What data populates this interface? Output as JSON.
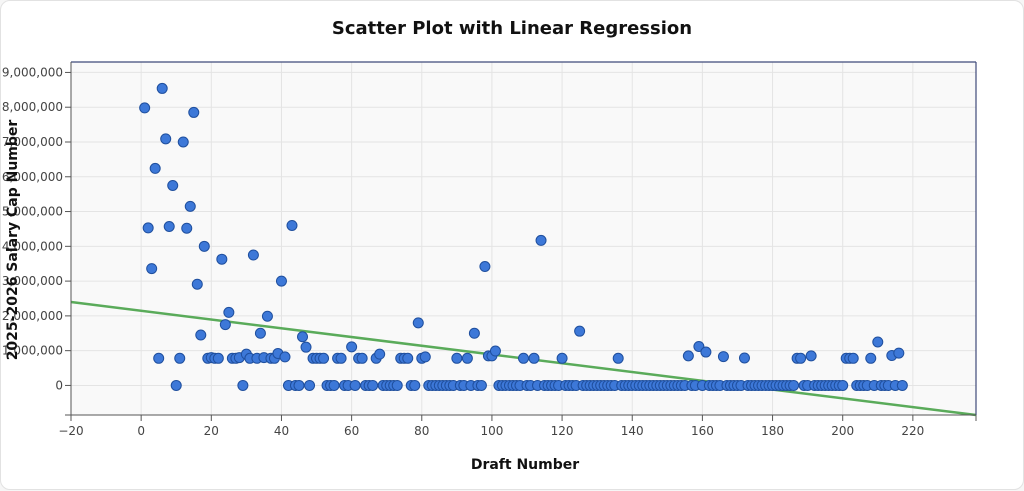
{
  "chart_data": {
    "type": "scatter",
    "title": "Scatter Plot with Linear Regression",
    "xlabel": "Draft Number",
    "ylabel": "2025-2026 Salary Cap Number",
    "xlim": [
      -20,
      238
    ],
    "ylim": [
      -850000,
      9300000
    ],
    "x_ticks": [
      -20,
      0,
      20,
      40,
      60,
      80,
      100,
      120,
      140,
      160,
      180,
      200,
      220
    ],
    "y_ticks": [
      0,
      1000000,
      2000000,
      3000000,
      4000000,
      5000000,
      6000000,
      7000000,
      8000000,
      9000000
    ],
    "x_tick_labels": [
      "−20",
      "0",
      "20",
      "40",
      "60",
      "80",
      "100",
      "120",
      "140",
      "160",
      "180",
      "200",
      "220"
    ],
    "y_tick_labels": [
      "0",
      "1,000,000",
      "2,000,000",
      "3,000,000",
      "4,000,000",
      "5,000,000",
      "6,000,000",
      "7,000,000",
      "8,000,000",
      "9,000,000"
    ],
    "grid": true,
    "point_color": "#3d78d8",
    "point_edge_color": "#1f4f9e",
    "line_color": "#5aab5a",
    "regression_line": {
      "x": [
        -20,
        238
      ],
      "y": [
        2400000,
        -850000
      ]
    },
    "points": [
      [
        1,
        7980000
      ],
      [
        2,
        4530000
      ],
      [
        3,
        3360000
      ],
      [
        4,
        6240000
      ],
      [
        5,
        780000
      ],
      [
        6,
        8540000
      ],
      [
        7,
        7090000
      ],
      [
        8,
        4570000
      ],
      [
        9,
        5750000
      ],
      [
        10,
        0
      ],
      [
        11,
        780000
      ],
      [
        12,
        7000000
      ],
      [
        13,
        4520000
      ],
      [
        14,
        5150000
      ],
      [
        15,
        7850000
      ],
      [
        16,
        2910000
      ],
      [
        17,
        1450000
      ],
      [
        18,
        4000000
      ],
      [
        19,
        780000
      ],
      [
        20,
        800000
      ],
      [
        21,
        780000
      ],
      [
        22,
        780000
      ],
      [
        23,
        3630000
      ],
      [
        24,
        1750000
      ],
      [
        25,
        2100000
      ],
      [
        26,
        780000
      ],
      [
        27,
        780000
      ],
      [
        28,
        800000
      ],
      [
        29,
        0
      ],
      [
        30,
        900000
      ],
      [
        31,
        780000
      ],
      [
        32,
        3750000
      ],
      [
        33,
        780000
      ],
      [
        34,
        1500000
      ],
      [
        35,
        800000
      ],
      [
        36,
        1990000
      ],
      [
        37,
        780000
      ],
      [
        38,
        780000
      ],
      [
        39,
        920000
      ],
      [
        40,
        3000000
      ],
      [
        41,
        820000
      ],
      [
        42,
        0
      ],
      [
        43,
        4600000
      ],
      [
        44,
        0
      ],
      [
        45,
        0
      ],
      [
        46,
        1400000
      ],
      [
        47,
        1100000
      ],
      [
        48,
        0
      ],
      [
        49,
        780000
      ],
      [
        50,
        780000
      ],
      [
        51,
        780000
      ],
      [
        52,
        780000
      ],
      [
        53,
        0
      ],
      [
        54,
        0
      ],
      [
        55,
        0
      ],
      [
        56,
        780000
      ],
      [
        57,
        780000
      ],
      [
        58,
        0
      ],
      [
        59,
        0
      ],
      [
        60,
        1110000
      ],
      [
        61,
        0
      ],
      [
        62,
        780000
      ],
      [
        63,
        780000
      ],
      [
        64,
        0
      ],
      [
        65,
        0
      ],
      [
        66,
        0
      ],
      [
        67,
        780000
      ],
      [
        68,
        900000
      ],
      [
        69,
        0
      ],
      [
        70,
        0
      ],
      [
        71,
        0
      ],
      [
        72,
        0
      ],
      [
        73,
        0
      ],
      [
        74,
        780000
      ],
      [
        75,
        780000
      ],
      [
        76,
        780000
      ],
      [
        77,
        0
      ],
      [
        78,
        0
      ],
      [
        79,
        1800000
      ],
      [
        80,
        780000
      ],
      [
        81,
        820000
      ],
      [
        82,
        0
      ],
      [
        83,
        0
      ],
      [
        84,
        0
      ],
      [
        85,
        0
      ],
      [
        86,
        0
      ],
      [
        87,
        0
      ],
      [
        88,
        0
      ],
      [
        89,
        0
      ],
      [
        90,
        780000
      ],
      [
        91,
        0
      ],
      [
        92,
        0
      ],
      [
        93,
        780000
      ],
      [
        94,
        0
      ],
      [
        95,
        1500000
      ],
      [
        96,
        0
      ],
      [
        97,
        0
      ],
      [
        98,
        3420000
      ],
      [
        99,
        850000
      ],
      [
        100,
        850000
      ],
      [
        101,
        990000
      ],
      [
        102,
        0
      ],
      [
        103,
        0
      ],
      [
        104,
        0
      ],
      [
        105,
        0
      ],
      [
        106,
        0
      ],
      [
        107,
        0
      ],
      [
        108,
        0
      ],
      [
        109,
        780000
      ],
      [
        110,
        0
      ],
      [
        111,
        0
      ],
      [
        112,
        780000
      ],
      [
        113,
        0
      ],
      [
        114,
        4170000
      ],
      [
        115,
        0
      ],
      [
        116,
        0
      ],
      [
        117,
        0
      ],
      [
        118,
        0
      ],
      [
        119,
        0
      ],
      [
        120,
        780000
      ],
      [
        121,
        0
      ],
      [
        122,
        0
      ],
      [
        123,
        0
      ],
      [
        124,
        0
      ],
      [
        125,
        1560000
      ],
      [
        126,
        0
      ],
      [
        127,
        0
      ],
      [
        128,
        0
      ],
      [
        129,
        0
      ],
      [
        130,
        0
      ],
      [
        131,
        0
      ],
      [
        132,
        0
      ],
      [
        133,
        0
      ],
      [
        134,
        0
      ],
      [
        135,
        0
      ],
      [
        136,
        780000
      ],
      [
        137,
        0
      ],
      [
        138,
        0
      ],
      [
        139,
        0
      ],
      [
        140,
        0
      ],
      [
        141,
        0
      ],
      [
        142,
        0
      ],
      [
        143,
        0
      ],
      [
        144,
        0
      ],
      [
        145,
        0
      ],
      [
        146,
        0
      ],
      [
        147,
        0
      ],
      [
        148,
        0
      ],
      [
        149,
        0
      ],
      [
        150,
        0
      ],
      [
        151,
        0
      ],
      [
        152,
        0
      ],
      [
        153,
        0
      ],
      [
        154,
        0
      ],
      [
        155,
        0
      ],
      [
        156,
        850000
      ],
      [
        157,
        0
      ],
      [
        158,
        0
      ],
      [
        159,
        1120000
      ],
      [
        160,
        0
      ],
      [
        161,
        960000
      ],
      [
        162,
        0
      ],
      [
        163,
        0
      ],
      [
        164,
        0
      ],
      [
        165,
        0
      ],
      [
        166,
        830000
      ],
      [
        167,
        0
      ],
      [
        168,
        0
      ],
      [
        169,
        0
      ],
      [
        170,
        0
      ],
      [
        171,
        0
      ],
      [
        172,
        790000
      ],
      [
        173,
        0
      ],
      [
        174,
        0
      ],
      [
        175,
        0
      ],
      [
        176,
        0
      ],
      [
        177,
        0
      ],
      [
        178,
        0
      ],
      [
        179,
        0
      ],
      [
        180,
        0
      ],
      [
        181,
        0
      ],
      [
        182,
        0
      ],
      [
        183,
        0
      ],
      [
        184,
        0
      ],
      [
        185,
        0
      ],
      [
        186,
        0
      ],
      [
        187,
        780000
      ],
      [
        188,
        780000
      ],
      [
        189,
        0
      ],
      [
        190,
        0
      ],
      [
        191,
        850000
      ],
      [
        192,
        0
      ],
      [
        193,
        0
      ],
      [
        194,
        0
      ],
      [
        195,
        0
      ],
      [
        196,
        0
      ],
      [
        197,
        0
      ],
      [
        198,
        0
      ],
      [
        199,
        0
      ],
      [
        200,
        0
      ],
      [
        201,
        780000
      ],
      [
        202,
        780000
      ],
      [
        203,
        780000
      ],
      [
        204,
        0
      ],
      [
        205,
        0
      ],
      [
        206,
        0
      ],
      [
        207,
        0
      ],
      [
        208,
        780000
      ],
      [
        209,
        0
      ],
      [
        210,
        1250000
      ],
      [
        211,
        0
      ],
      [
        212,
        0
      ],
      [
        213,
        0
      ],
      [
        214,
        860000
      ],
      [
        215,
        0
      ],
      [
        216,
        930000
      ],
      [
        217,
        0
      ]
    ]
  }
}
